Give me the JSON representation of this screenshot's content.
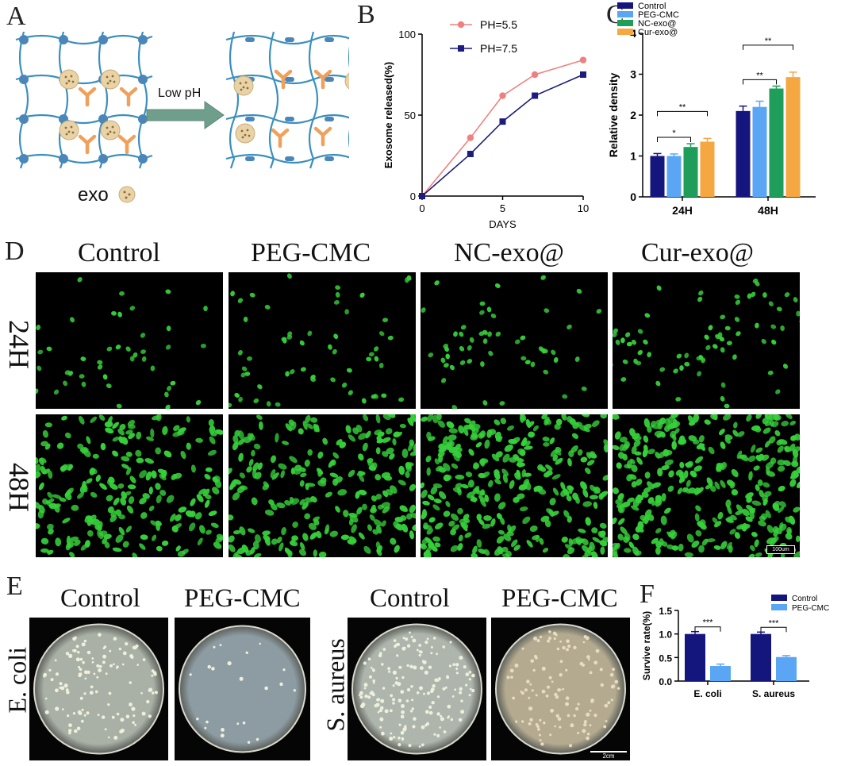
{
  "panel_labels": {
    "a": "A",
    "b": "B",
    "c": "C",
    "d": "D",
    "e": "E",
    "f": "F"
  },
  "schematic": {
    "arrow_label": "Low pH",
    "legend_label": "exo",
    "colors": {
      "network": "#3a8fbf",
      "node": "#4b86b8",
      "drug": "#f0a05a",
      "exo": "#e8d2a6",
      "arrow": "#6f9e8c"
    }
  },
  "microscopy": {
    "columns": [
      "Control",
      "PEG-CMC",
      "NC-exo@",
      "Cur-exo@"
    ],
    "rows": [
      "24H",
      "48H"
    ],
    "scale_bar": "100um",
    "cell_color": "#36d03a"
  },
  "plates": {
    "groups": [
      {
        "organism": "E. coli",
        "columns": [
          "Control",
          "PEG-CMC"
        ]
      },
      {
        "organism": "S. aureus",
        "columns": [
          "Control",
          "PEG-CMC"
        ]
      }
    ],
    "scale_bar": "2cm"
  },
  "chart_data": [
    {
      "panel": "B",
      "type": "line",
      "title": "",
      "xlabel": "DAYS",
      "ylabel": "Exosome released(%)",
      "xlim": [
        0,
        10
      ],
      "ylim": [
        0,
        100
      ],
      "xticks": [
        0,
        5,
        10
      ],
      "yticks": [
        0,
        50,
        100
      ],
      "grid": false,
      "legend": "top-left",
      "series": [
        {
          "name": "PH=5.5",
          "color": "#f08080",
          "marker": "circle",
          "x": [
            0,
            3,
            5,
            7,
            10
          ],
          "y": [
            0,
            36,
            62,
            75,
            84
          ]
        },
        {
          "name": "PH=7.5",
          "color": "#1c1c7e",
          "marker": "square",
          "x": [
            0,
            3,
            5,
            7,
            10
          ],
          "y": [
            0,
            26,
            46,
            62,
            75
          ]
        }
      ]
    },
    {
      "panel": "C",
      "type": "bar",
      "title": "",
      "xlabel": "",
      "ylabel": "Relative density",
      "ylim": [
        0,
        4
      ],
      "yticks": [
        0,
        1,
        2,
        3,
        4
      ],
      "categories": [
        "24H",
        "48H"
      ],
      "legend": "top-left",
      "series": [
        {
          "name": "Control",
          "color": "#15157e",
          "values": [
            1.0,
            2.1
          ],
          "errors": [
            0.06,
            0.12
          ]
        },
        {
          "name": "PEG-CMC",
          "color": "#5aa6f5",
          "values": [
            1.0,
            2.2
          ],
          "errors": [
            0.05,
            0.14
          ]
        },
        {
          "name": "NC-exo@",
          "color": "#1e9e5a",
          "values": [
            1.22,
            2.65
          ],
          "errors": [
            0.08,
            0.06
          ]
        },
        {
          "name": "Cur-exo@",
          "color": "#f5a742",
          "values": [
            1.35,
            2.93
          ],
          "errors": [
            0.08,
            0.12
          ]
        }
      ],
      "significance": [
        {
          "category": "24H",
          "from": "Control",
          "to": "NC-exo@",
          "label": "*"
        },
        {
          "category": "24H",
          "from": "Control",
          "to": "Cur-exo@",
          "label": "**"
        },
        {
          "category": "48H",
          "from": "Control",
          "to": "NC-exo@",
          "label": "**"
        },
        {
          "category": "48H",
          "from": "Control",
          "to": "Cur-exo@",
          "label": "**"
        }
      ]
    },
    {
      "panel": "F",
      "type": "bar",
      "title": "",
      "xlabel": "",
      "ylabel": "Survive rate(%)",
      "ylim": [
        0,
        1.5
      ],
      "yticks": [
        0.0,
        0.5,
        1.0,
        1.5
      ],
      "categories": [
        "E. coli",
        "S. aureus"
      ],
      "legend": "top-right",
      "series": [
        {
          "name": "Control",
          "color": "#15157e",
          "values": [
            1.0,
            1.0
          ],
          "errors": [
            0.05,
            0.04
          ]
        },
        {
          "name": "PEG-CMC",
          "color": "#5aa6f5",
          "values": [
            0.32,
            0.51
          ],
          "errors": [
            0.04,
            0.03
          ]
        }
      ],
      "significance": [
        {
          "category": "E. coli",
          "from": "Control",
          "to": "PEG-CMC",
          "label": "***"
        },
        {
          "category": "S. aureus",
          "from": "Control",
          "to": "PEG-CMC",
          "label": "***"
        }
      ]
    }
  ]
}
